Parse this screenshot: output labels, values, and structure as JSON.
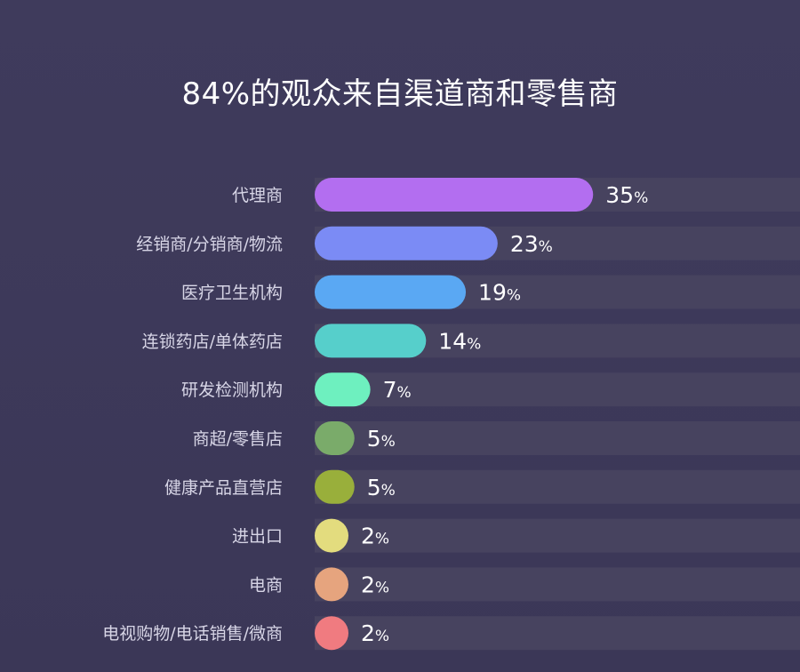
{
  "chart_data": {
    "type": "bar",
    "orientation": "horizontal",
    "title": "84%的观众来自渠道商和零售商",
    "categories": [
      "代理商",
      "经销商/分销商/物流",
      "医疗卫生机构",
      "连锁药店/单体药店",
      "研发检测机构",
      "商超/零售店",
      "健康产品直营店",
      "进出口",
      "电商",
      "电视购物/电话销售/微商"
    ],
    "values": [
      35,
      23,
      19,
      14,
      7,
      5,
      5,
      2,
      2,
      2
    ],
    "unit": "%",
    "colors": [
      "#b36ef0",
      "#7b8bf5",
      "#5aa8f3",
      "#56cfcb",
      "#6ef0bf",
      "#7aab6a",
      "#99af3b",
      "#e3dc7e",
      "#e6a47e",
      "#f07b80"
    ],
    "track_color": "#47435f",
    "xlim": [
      0,
      35
    ],
    "grid": false,
    "legend": "none"
  }
}
